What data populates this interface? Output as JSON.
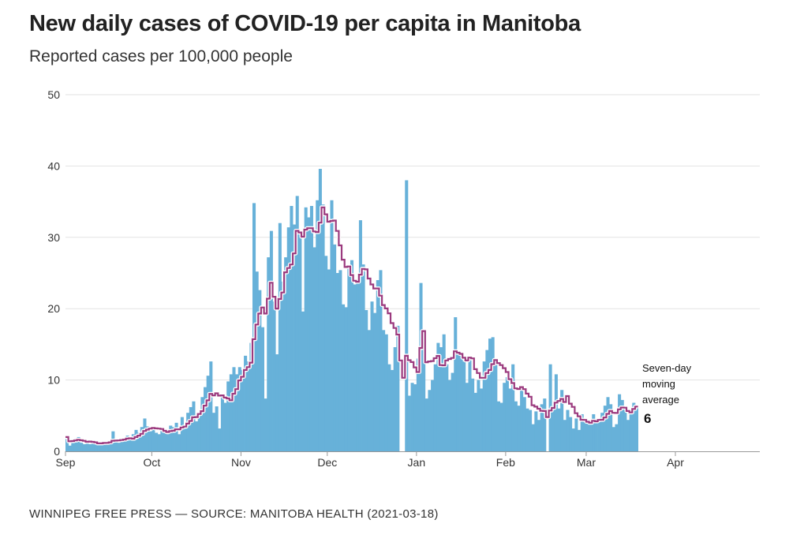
{
  "title": "New daily cases of COVID-19 per capita in Manitoba",
  "subtitle": "Reported cases per 100,000 people",
  "source": "WINNIPEG FREE PRESS — SOURCE: MANITOBA HEALTH (2021-03-18)",
  "colors": {
    "bars": "#67b1d9",
    "average_line": "#9b3a7e"
  },
  "chart_data": {
    "type": "bar",
    "title": "New daily cases of COVID-19 per capita in Manitoba",
    "ylabel": "",
    "xlabel": "",
    "ylim": [
      0,
      50
    ],
    "yticks": [
      0,
      10,
      20,
      30,
      40,
      50
    ],
    "xticks": [
      "Sep",
      "Oct",
      "Nov",
      "Dec",
      "Jan",
      "Feb",
      "Mar",
      "Apr"
    ],
    "grid": true,
    "x_start": "2020-09-01",
    "x_end": "2021-04-01",
    "series": [
      {
        "type": "bar",
        "daily_values": [
          2,
          0.8,
          1.5,
          1.8,
          2,
          1.2,
          1,
          1.1,
          1,
          1.2,
          1.3,
          1,
          1.2,
          1.4,
          1.2,
          1.5,
          2.8,
          1.4,
          1.2,
          1.6,
          1.8,
          2.2,
          1.8,
          2.4,
          3,
          2.6,
          3.4,
          4.6,
          3.5,
          2.8,
          3,
          2.6,
          2.4,
          3,
          2.8,
          2.4,
          3.6,
          3.4,
          4,
          2.4,
          4.8,
          3.6,
          5.4,
          6.2,
          7,
          4.2,
          5.4,
          7.6,
          9,
          10.6,
          12.6,
          5.4,
          6.3,
          3.2,
          7.8,
          6.8,
          9.8,
          10.8,
          11.8,
          10.8,
          11.8,
          11.4,
          13.4,
          12.6,
          15.2,
          34.8,
          25.2,
          22.6,
          17.4,
          7.4,
          27.2,
          30.9,
          21,
          13.6,
          32,
          23.8,
          27.2,
          31.4,
          34.4,
          31.8,
          35.8,
          30.4,
          19.6,
          34.2,
          32.8,
          34.4,
          28.6,
          35.2,
          39.6,
          34.6,
          27.4,
          25.5,
          35.2,
          29,
          25,
          25.4,
          20.6,
          20.2,
          26,
          26.8,
          23.4,
          24,
          32.4,
          26.2,
          19.8,
          17,
          21,
          19.4,
          24,
          25.4,
          17,
          16.4,
          12.2,
          11.4,
          14.6,
          17.6,
          0,
          0,
          38,
          7.8,
          9.6,
          9.4,
          13,
          23.6,
          16.6,
          7.4,
          8.6,
          10,
          12.2,
          15.2,
          14.6,
          16.4,
          12.2,
          10,
          11,
          18.8,
          13.8,
          13.4,
          12.6,
          9.6,
          12.8,
          10.2,
          8.2,
          10,
          8.8,
          12.6,
          14.2,
          15.8,
          16,
          12.2,
          7,
          6.8,
          9.6,
          10.4,
          8.8,
          12.2,
          7,
          6.4,
          8.6,
          7.6,
          6,
          5.8,
          3.8,
          5.6,
          4.4,
          6.6,
          7.4,
          0,
          12.2,
          6.4,
          10.8,
          6,
          8.6,
          4.4,
          5.8,
          4.8,
          3.2,
          4.6,
          3,
          5.2,
          4.2,
          4,
          3.8,
          5.2,
          4,
          4.4,
          5.4,
          6.4,
          7.6,
          6.6,
          3.4,
          3.8,
          8,
          7.2,
          6.2,
          4.4,
          5.2,
          6.8,
          6.1
        ]
      },
      {
        "type": "line",
        "name": "Seven-day moving average",
        "latest_value": "6"
      }
    ],
    "annotation": {
      "lines": [
        "Seven-day",
        "moving",
        "average"
      ],
      "value": "6"
    }
  }
}
